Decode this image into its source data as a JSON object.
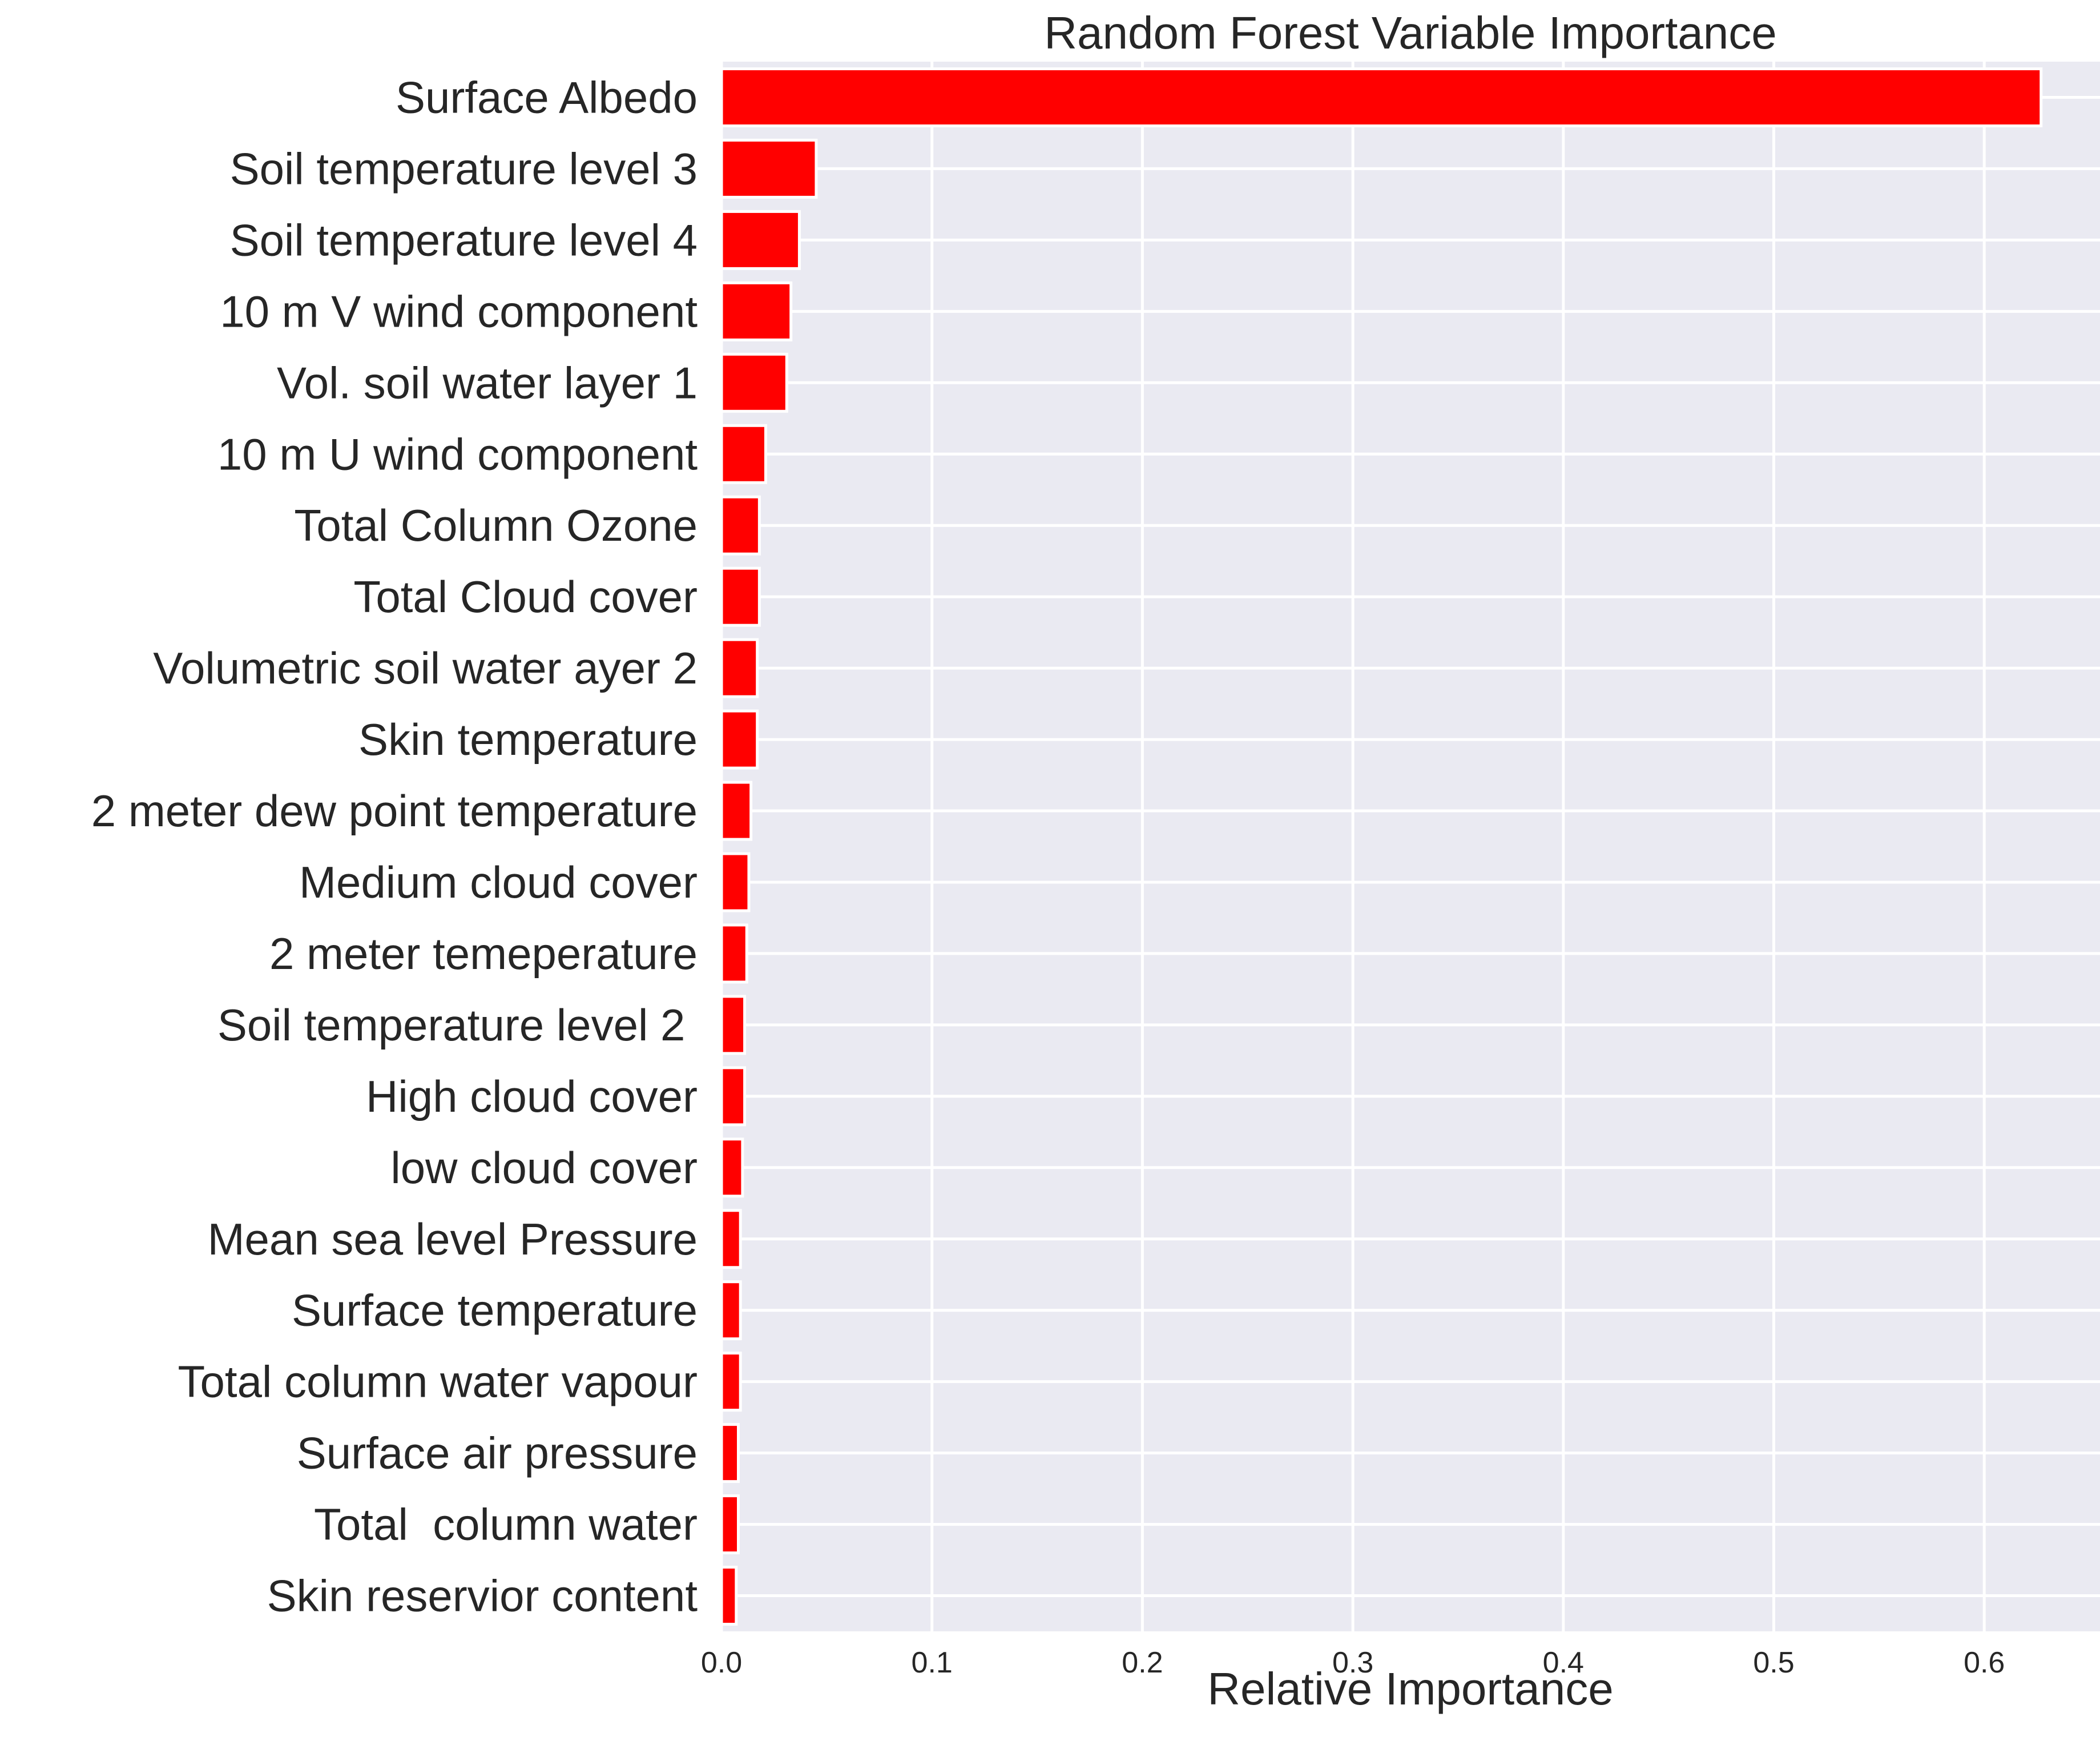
{
  "chart_data": {
    "type": "bar",
    "orientation": "horizontal",
    "title": "Random Forest Variable Importance",
    "xlabel": "Relative Importance",
    "ylabel": "",
    "xlim": [
      0,
      0.655
    ],
    "xticks": [
      0.0,
      0.1,
      0.2,
      0.3,
      0.4,
      0.5,
      0.6
    ],
    "xtick_labels": [
      "0.0",
      "0.1",
      "0.2",
      "0.3",
      "0.4",
      "0.5",
      "0.6"
    ],
    "grid": true,
    "colors": {
      "bar": "#ff0000",
      "plot_background": "#eaeaf2",
      "grid": "#ffffff",
      "text": "#262626"
    },
    "categories": [
      "Surface Albedo",
      "Soil temperature level 3",
      "Soil temperature level 4",
      "10 m V wind component",
      "Vol. soil water layer 1",
      "10 m U wind component",
      "Total Column Ozone",
      "Total Cloud cover",
      "Volumetric soil water ayer 2",
      "Skin temperature",
      "2 meter dew point temperature",
      "Medium cloud cover",
      "2 meter temeperature",
      "Soil temperature level 2 ",
      "High cloud cover",
      "low cloud cover",
      "Mean sea level Pressure",
      "Surface temperature",
      "Total column water vapour",
      "Surface air pressure",
      "Total  column water",
      "Skin reservior content"
    ],
    "values": [
      0.627,
      0.045,
      0.037,
      0.033,
      0.031,
      0.021,
      0.018,
      0.018,
      0.017,
      0.017,
      0.014,
      0.013,
      0.012,
      0.011,
      0.011,
      0.01,
      0.009,
      0.009,
      0.009,
      0.008,
      0.008,
      0.007
    ]
  }
}
